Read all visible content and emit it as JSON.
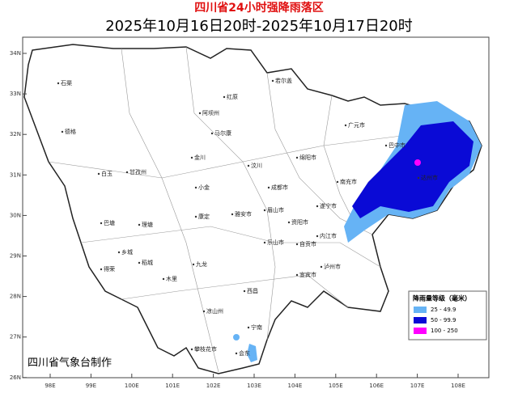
{
  "header": {
    "title": "四川省24小时强降雨落区",
    "subtitle": "2025年10月16日20时-2025年10月17日20时"
  },
  "axes": {
    "lat_labels": [
      "34N",
      "33N",
      "32N",
      "31N",
      "30N",
      "29N",
      "28N",
      "27N",
      "26N"
    ],
    "lon_labels": [
      "98E",
      "99E",
      "100E",
      "101E",
      "102E",
      "103E",
      "104E",
      "105E",
      "106E",
      "107E",
      "108E"
    ]
  },
  "places": [
    "石渠",
    "德格",
    "甘孜州",
    "白玉",
    "巴塘",
    "理塘",
    "稻城",
    "乡城",
    "得荣",
    "木里",
    "九龙",
    "康定",
    "阿坝州",
    "若尔盖",
    "红原",
    "马尔康",
    "金川",
    "小金",
    "汶川",
    "成都市",
    "绵阳市",
    "广元市",
    "巴中市",
    "达州市",
    "南充市",
    "遂宁市",
    "资阳市",
    "内江市",
    "自贡市",
    "泸州市",
    "宜宾市",
    "乐山市",
    "雅安市",
    "眉山市",
    "凉山州",
    "西昌",
    "攀枝花市",
    "会东",
    "宁南"
  ],
  "legend": {
    "title": "降雨量等级（毫米）",
    "items": [
      {
        "label": "25 - 49.9",
        "color": "#66b3f5"
      },
      {
        "label": "50 - 99.9",
        "color": "#0a0ad6"
      },
      {
        "label": "100 - 250",
        "color": "#ff00ff"
      }
    ]
  },
  "credit": "四川省气象台制作"
}
